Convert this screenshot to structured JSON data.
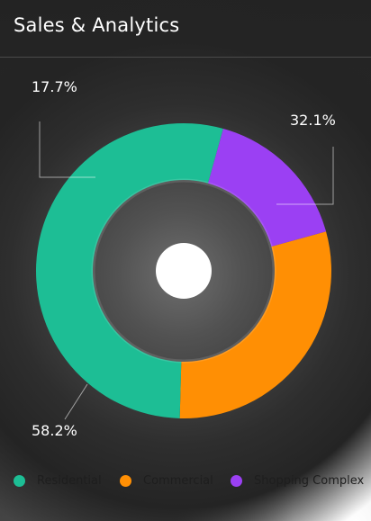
{
  "header": {
    "title": "Sales & Analytics"
  },
  "chart_data": {
    "type": "pie",
    "variant": "donut",
    "categories": [
      "Residential",
      "Commercial",
      "Shopping Complex"
    ],
    "values": [
      58.2,
      32.1,
      17.7
    ],
    "value_labels": [
      "58.2%",
      "32.1%",
      "17.7%"
    ],
    "colors": [
      "#1dbe95",
      "#ff8f04",
      "#9b40f3"
    ],
    "legend_position": "bottom"
  }
}
